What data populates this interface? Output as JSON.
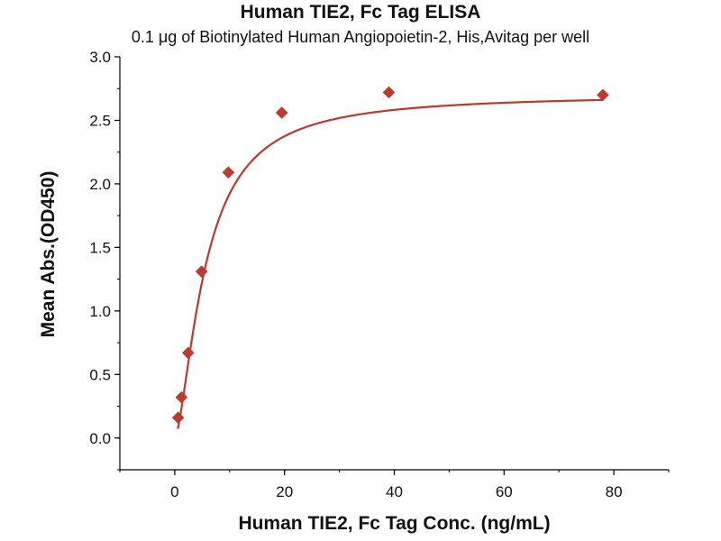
{
  "chart_data": {
    "type": "scatter",
    "title": "Human TIE2, Fc Tag ELISA",
    "subtitle": "0.1 μg of Biotinylated Human Angiopoietin-2, His,Avitag per well",
    "xlabel": "Human TIE2, Fc Tag Conc. (ng/mL)",
    "ylabel": "Mean Abs.(OD450)",
    "xlim": [
      -10,
      90
    ],
    "ylim": [
      -0.25,
      3.0
    ],
    "xticks": [
      0,
      20,
      40,
      60,
      80
    ],
    "yticks": [
      0.0,
      0.5,
      1.0,
      1.5,
      2.0,
      2.5,
      3.0
    ],
    "ytick_labels": [
      "0.0",
      "0.5",
      "1.0",
      "1.5",
      "2.0",
      "2.5",
      "3.0"
    ],
    "grid": false,
    "legend": null,
    "series": [
      {
        "points": [
          [
            0.61,
            0.16
          ],
          [
            1.22,
            0.32
          ],
          [
            2.44,
            0.67
          ],
          [
            4.88,
            1.31
          ],
          [
            9.77,
            2.09
          ],
          [
            19.5,
            2.56
          ],
          [
            39.0,
            2.72
          ],
          [
            78.0,
            2.7
          ]
        ],
        "marker": "diamond",
        "color": "#c0392b",
        "fit_curve": "four-parameter logistic"
      }
    ]
  }
}
